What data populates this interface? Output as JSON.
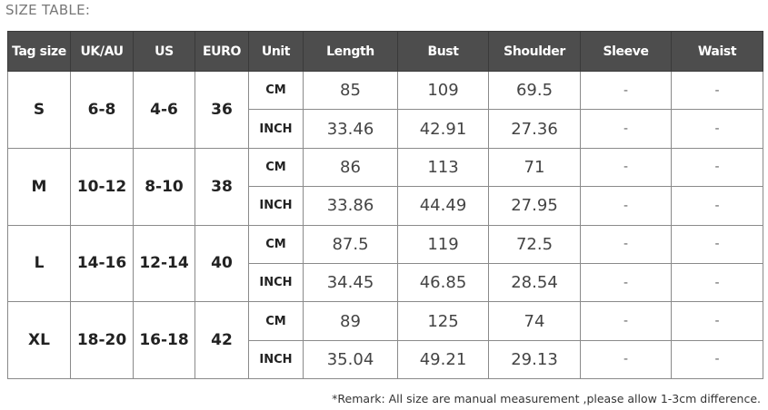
{
  "title": "SIZE TABLE:",
  "headers": [
    "Tag size",
    "UK/AU",
    "US",
    "EURO",
    "Unit",
    "Length",
    "Bust",
    "Shoulder",
    "Sleeve",
    "Waist"
  ],
  "rows": [
    {
      "tag": "S",
      "uk": "6-8",
      "us": "4-6",
      "euro": "36",
      "cm": {
        "unit": "CM",
        "length": "85",
        "bust": "109",
        "shoulder": "69.5",
        "sleeve": "-",
        "waist": "-"
      },
      "inch": {
        "unit": "INCH",
        "length": "33.46",
        "bust": "42.91",
        "shoulder": "27.36",
        "sleeve": "-",
        "waist": "-"
      }
    },
    {
      "tag": "M",
      "uk": "10-12",
      "us": "8-10",
      "euro": "38",
      "cm": {
        "unit": "CM",
        "length": "86",
        "bust": "113",
        "shoulder": "71",
        "sleeve": "-",
        "waist": "-"
      },
      "inch": {
        "unit": "INCH",
        "length": "33.86",
        "bust": "44.49",
        "shoulder": "27.95",
        "sleeve": "-",
        "waist": "-"
      }
    },
    {
      "tag": "L",
      "uk": "14-16",
      "us": "12-14",
      "euro": "40",
      "cm": {
        "unit": "CM",
        "length": "87.5",
        "bust": "119",
        "shoulder": "72.5",
        "sleeve": "-",
        "waist": "-"
      },
      "inch": {
        "unit": "INCH",
        "length": "34.45",
        "bust": "46.85",
        "shoulder": "28.54",
        "sleeve": "-",
        "waist": "-"
      }
    },
    {
      "tag": "XL",
      "uk": "18-20",
      "us": "16-18",
      "euro": "42",
      "cm": {
        "unit": "CM",
        "length": "89",
        "bust": "125",
        "shoulder": "74",
        "sleeve": "-",
        "waist": "-"
      },
      "inch": {
        "unit": "INCH",
        "length": "35.04",
        "bust": "49.21",
        "shoulder": "29.13",
        "sleeve": "-",
        "waist": "-"
      }
    }
  ],
  "remark": "*Remark: All size are manual measurement ,please allow 1-3cm difference.",
  "colors": {
    "header_bg": "#4d4d4d",
    "header_text": "#ffffff",
    "border": "#8a8a8a"
  }
}
